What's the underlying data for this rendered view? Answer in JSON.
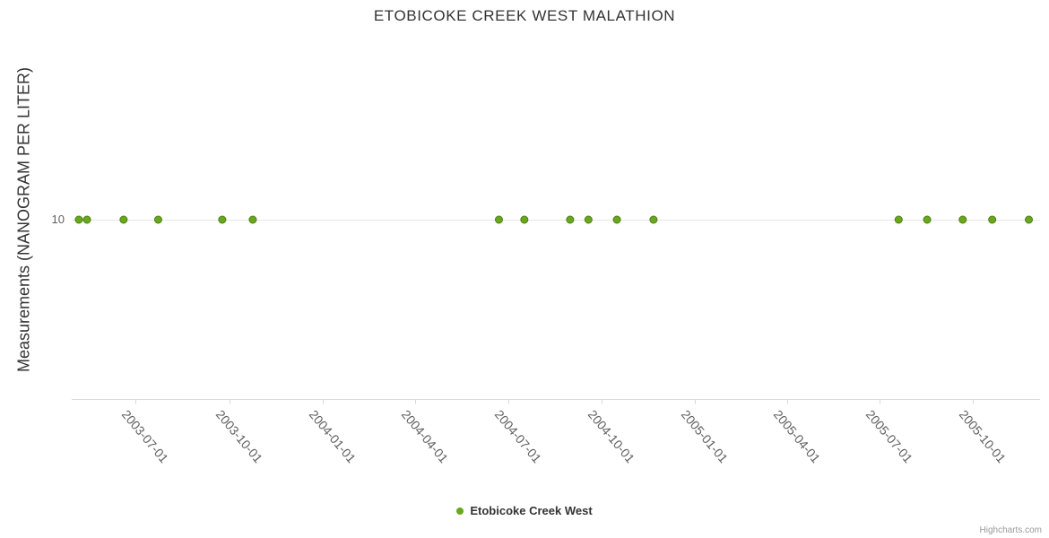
{
  "credits": "Highcharts.com",
  "chart_data": {
    "type": "scatter",
    "title": "ETOBICOKE CREEK WEST MALATHION",
    "xlabel": "",
    "ylabel": "Measurements (NANOGRAM PER LITER)",
    "xlim": [
      "2003-04-29",
      "2005-12-06"
    ],
    "ylim": [
      0,
      20
    ],
    "yticks": [
      10
    ],
    "xticks": [
      "2003-07-01",
      "2003-10-01",
      "2004-01-01",
      "2004-04-01",
      "2004-07-01",
      "2004-10-01",
      "2005-01-01",
      "2005-04-01",
      "2005-07-01",
      "2005-10-01"
    ],
    "grid": "horizontal-only",
    "legend_position": "bottom-center",
    "colors": {
      "background": "#ffffff",
      "title_text": "#333333",
      "axis_label_text": "#606060",
      "gridline": "#e6e6e6",
      "axis_line": "#d8d8d8",
      "legend_text": "#333333",
      "credits_text": "#999999"
    },
    "series": [
      {
        "name": "Etobicoke Creek West",
        "color": "#69a81e",
        "marker_line_color": "#4c7d12",
        "marker": "circle",
        "points": [
          {
            "x": "2003-05-06",
            "y": 10
          },
          {
            "x": "2003-05-14",
            "y": 10
          },
          {
            "x": "2003-06-19",
            "y": 10
          },
          {
            "x": "2003-07-23",
            "y": 10
          },
          {
            "x": "2003-09-24",
            "y": 10
          },
          {
            "x": "2003-10-24",
            "y": 10
          },
          {
            "x": "2004-06-22",
            "y": 10
          },
          {
            "x": "2004-07-17",
            "y": 10
          },
          {
            "x": "2004-08-31",
            "y": 10
          },
          {
            "x": "2004-09-18",
            "y": 10
          },
          {
            "x": "2004-10-16",
            "y": 10
          },
          {
            "x": "2004-11-21",
            "y": 10
          },
          {
            "x": "2005-07-20",
            "y": 10
          },
          {
            "x": "2005-08-17",
            "y": 10
          },
          {
            "x": "2005-09-21",
            "y": 10
          },
          {
            "x": "2005-10-20",
            "y": 10
          },
          {
            "x": "2005-11-25",
            "y": 10
          }
        ]
      }
    ]
  }
}
